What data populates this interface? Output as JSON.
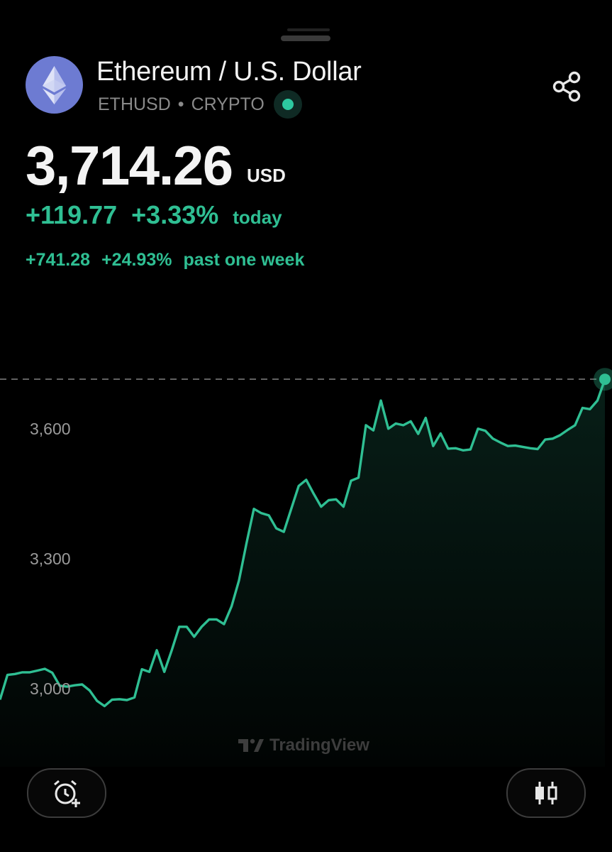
{
  "header": {
    "title": "Ethereum / U.S. Dollar",
    "symbol": "ETHUSD",
    "separator": "•",
    "market": "CRYPTO",
    "logo_icon": "ethereum-logo",
    "live_status_color": "#2dc9a0",
    "share_icon": "share-icon"
  },
  "quote": {
    "price": "3,714.26",
    "currency": "USD",
    "today_change": "+119.77",
    "today_change_pct": "+3.33%",
    "today_label": "today",
    "week_change": "+741.28",
    "week_change_pct": "+24.93%",
    "week_label": "past one week",
    "up_color": "#2fbf93"
  },
  "chart_data": {
    "type": "area",
    "y_ticks": [
      "3,600",
      "3,300",
      "3,000"
    ],
    "ylim": [
      2820,
      3770
    ],
    "current_price": 3714.26,
    "line_color": "#2fbf93",
    "values": [
      2975,
      3032,
      3034,
      3038,
      3038,
      3042,
      3046,
      3037,
      3007,
      3005,
      3008,
      3010,
      2996,
      2972,
      2960,
      2975,
      2976,
      2974,
      2980,
      3045,
      3039,
      3089,
      3039,
      3089,
      3143,
      3143,
      3120,
      3143,
      3160,
      3160,
      3149,
      3190,
      3250,
      3335,
      3415,
      3405,
      3400,
      3370,
      3362,
      3415,
      3468,
      3482,
      3450,
      3420,
      3435,
      3437,
      3420,
      3480,
      3487,
      3608,
      3596,
      3665,
      3600,
      3612,
      3608,
      3617,
      3588,
      3625,
      3560,
      3589,
      3554,
      3555,
      3550,
      3552,
      3600,
      3595,
      3577,
      3568,
      3560,
      3561,
      3558,
      3555,
      3553,
      3575,
      3577,
      3585,
      3597,
      3608,
      3648,
      3645,
      3665,
      3714
    ],
    "watermark": "TradingView"
  },
  "footer": {
    "left_button_icon": "add-alarm-icon",
    "right_button_icon": "candlestick-icon"
  }
}
